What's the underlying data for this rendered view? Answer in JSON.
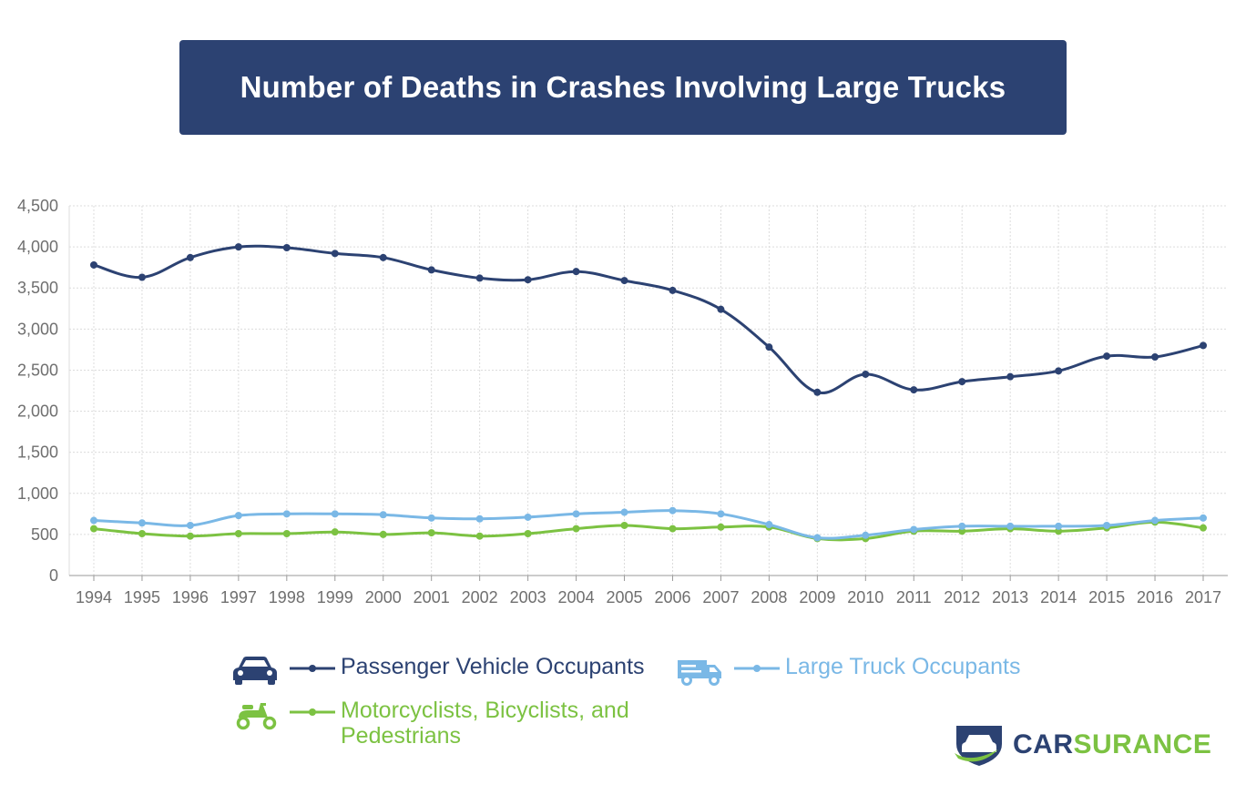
{
  "title": "Number of Deaths in Crashes Involving Large Trucks",
  "colors": {
    "banner": "#2c4272",
    "passenger": "#2c4272",
    "truck": "#7ab8e6",
    "vulnerable": "#7cc242",
    "grid": "#dcdcdc",
    "axis": "#9a9a9a",
    "ticks": "#6f6f6f"
  },
  "chart_data": {
    "type": "line",
    "x": [
      "1994",
      "1995",
      "1996",
      "1997",
      "1998",
      "1999",
      "2000",
      "2001",
      "2002",
      "2003",
      "2004",
      "2005",
      "2006",
      "2007",
      "2008",
      "2009",
      "2010",
      "2011",
      "2012",
      "2013",
      "2014",
      "2015",
      "2016",
      "2017"
    ],
    "ylim": [
      0,
      4500
    ],
    "yticks": [
      "0",
      "500",
      "1,000",
      "1,500",
      "2,000",
      "2,500",
      "3,000",
      "3,500",
      "4,000",
      "4,500"
    ],
    "ytick_values": [
      0,
      500,
      1000,
      1500,
      2000,
      2500,
      3000,
      3500,
      4000,
      4500
    ],
    "grid": true,
    "legend_position": "bottom",
    "series": [
      {
        "name": "Passenger Vehicle Occupants",
        "color_key": "passenger",
        "values": [
          3780,
          3630,
          3870,
          4000,
          3990,
          3920,
          3870,
          3720,
          3620,
          3600,
          3700,
          3590,
          3470,
          3240,
          2780,
          2230,
          2450,
          2260,
          2360,
          2420,
          2490,
          2670,
          2660,
          2800
        ]
      },
      {
        "name": "Large Truck Occupants",
        "color_key": "truck",
        "values": [
          670,
          640,
          610,
          730,
          750,
          750,
          740,
          700,
          690,
          710,
          750,
          770,
          790,
          750,
          620,
          460,
          490,
          560,
          600,
          600,
          600,
          610,
          670,
          700
        ]
      },
      {
        "name": "Motorcyclists, Bicyclists, and Pedestrians",
        "color_key": "vulnerable",
        "values": [
          570,
          510,
          480,
          510,
          510,
          530,
          500,
          520,
          480,
          510,
          570,
          610,
          570,
          590,
          590,
          450,
          450,
          540,
          540,
          570,
          540,
          580,
          650,
          580
        ]
      }
    ]
  },
  "legend": {
    "passenger_label": "Passenger Vehicle Occupants",
    "truck_label": "Large Truck Occupants",
    "vulnerable_label_1": "Motorcyclists, Bicyclists, and",
    "vulnerable_label_2": "Pedestrians",
    "icons": [
      "car-icon",
      "truck-icon",
      "scooter-icon"
    ]
  },
  "logo": {
    "part1": "CAR",
    "part2": "SURANCE",
    "color1": "#2c4272",
    "color2": "#7cc242"
  }
}
